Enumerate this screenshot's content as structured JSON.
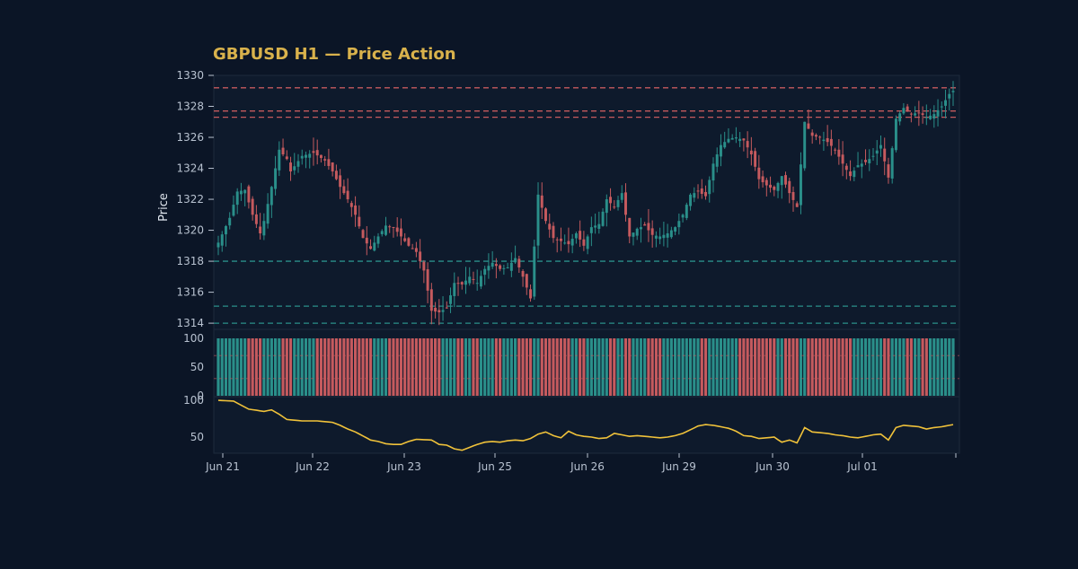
{
  "colors": {
    "background": "#0b1526",
    "panel": "#0e1a2c",
    "frame": "#1d2a3c",
    "text": "#b8c2d0",
    "title": "#d9b24c",
    "up": "#2a8f8a",
    "down": "#c55a5e",
    "resistance": "#c55a5e",
    "support": "#2a8f8a",
    "indicator": "#f0c23a"
  },
  "chart_data": {
    "type": "candlestick",
    "title": "GBPUSD H1 — Price Action",
    "ylabel": "Price",
    "price_ylim": [
      1313.6,
      1330.0
    ],
    "price_ticks": [
      "1314",
      "1316",
      "1318",
      "1320",
      "1322",
      "1324",
      "1326",
      "1328",
      "1330"
    ],
    "x_ticks": [
      "Jun 21",
      "Jun 22",
      "Jun 23",
      "Jun 25",
      "Jun 26",
      "Jun 29",
      "Jun 30",
      "Jul 01"
    ],
    "resistance_levels": [
      1329.2,
      1327.7,
      1327.3
    ],
    "support_levels": [
      1318.0,
      1315.1,
      1314.0
    ],
    "price_keypoints": [
      [
        0,
        1319.2
      ],
      [
        3,
        1320.8
      ],
      [
        5,
        1322.5
      ],
      [
        7,
        1322.6
      ],
      [
        9,
        1321.0
      ],
      [
        11,
        1319.8
      ],
      [
        12,
        1320.6
      ],
      [
        14,
        1322.8
      ],
      [
        16,
        1325.2
      ],
      [
        18,
        1324.6
      ],
      [
        19,
        1323.8
      ],
      [
        22,
        1324.8
      ],
      [
        25,
        1325.0
      ],
      [
        28,
        1324.5
      ],
      [
        30,
        1323.8
      ],
      [
        32,
        1322.8
      ],
      [
        34,
        1322.0
      ],
      [
        36,
        1321.0
      ],
      [
        38,
        1319.5
      ],
      [
        40,
        1318.8
      ],
      [
        42,
        1319.6
      ],
      [
        44,
        1320.3
      ],
      [
        46,
        1320.2
      ],
      [
        48,
        1319.6
      ],
      [
        50,
        1319.0
      ],
      [
        52,
        1318.6
      ],
      [
        54,
        1317.4
      ],
      [
        56,
        1314.8
      ],
      [
        58,
        1314.7
      ],
      [
        60,
        1315.0
      ],
      [
        62,
        1316.6
      ],
      [
        64,
        1316.5
      ],
      [
        66,
        1317.0
      ],
      [
        68,
        1316.6
      ],
      [
        70,
        1317.5
      ],
      [
        72,
        1317.9
      ],
      [
        74,
        1317.5
      ],
      [
        76,
        1317.6
      ],
      [
        78,
        1318.2
      ],
      [
        80,
        1317.0
      ],
      [
        82,
        1315.6
      ],
      [
        84,
        1322.3
      ],
      [
        86,
        1320.6
      ],
      [
        88,
        1319.5
      ],
      [
        90,
        1319.3
      ],
      [
        92,
        1319.1
      ],
      [
        94,
        1319.8
      ],
      [
        96,
        1319.0
      ],
      [
        98,
        1320.2
      ],
      [
        100,
        1320.4
      ],
      [
        102,
        1322.0
      ],
      [
        104,
        1321.5
      ],
      [
        106,
        1322.4
      ],
      [
        108,
        1319.6
      ],
      [
        110,
        1320.1
      ],
      [
        112,
        1320.3
      ],
      [
        114,
        1319.7
      ],
      [
        116,
        1319.6
      ],
      [
        118,
        1319.8
      ],
      [
        120,
        1320.2
      ],
      [
        122,
        1321.0
      ],
      [
        124,
        1322.3
      ],
      [
        126,
        1322.5
      ],
      [
        128,
        1322.2
      ],
      [
        130,
        1324.3
      ],
      [
        132,
        1325.5
      ],
      [
        134,
        1325.9
      ],
      [
        136,
        1326.0
      ],
      [
        138,
        1325.8
      ],
      [
        140,
        1324.9
      ],
      [
        142,
        1323.3
      ],
      [
        144,
        1322.9
      ],
      [
        146,
        1322.6
      ],
      [
        148,
        1323.5
      ],
      [
        150,
        1322.4
      ],
      [
        152,
        1321.5
      ],
      [
        154,
        1327.0
      ],
      [
        156,
        1326.1
      ],
      [
        158,
        1326.0
      ],
      [
        160,
        1325.7
      ],
      [
        162,
        1325.2
      ],
      [
        164,
        1324.3
      ],
      [
        166,
        1323.5
      ],
      [
        168,
        1324.2
      ],
      [
        170,
        1324.4
      ],
      [
        172,
        1324.8
      ],
      [
        174,
        1325.5
      ],
      [
        176,
        1323.4
      ],
      [
        178,
        1327.2
      ],
      [
        180,
        1327.9
      ],
      [
        182,
        1327.5
      ],
      [
        184,
        1327.6
      ],
      [
        186,
        1327.3
      ],
      [
        188,
        1327.5
      ],
      [
        190,
        1328.0
      ],
      [
        192,
        1328.8
      ],
      [
        193,
        1329.0
      ]
    ],
    "price_candle_count": 194,
    "volume_ylim": [
      0,
      100
    ],
    "volume_ticks": [
      "0",
      "50",
      "100"
    ],
    "oscillator_ylim": [
      28,
      105
    ],
    "oscillator_ticks": [
      "50",
      "100"
    ],
    "oscillator_keypoints": [
      [
        0,
        100
      ],
      [
        4,
        99
      ],
      [
        8,
        88
      ],
      [
        12,
        85
      ],
      [
        14,
        87
      ],
      [
        16,
        81
      ],
      [
        18,
        74
      ],
      [
        22,
        72
      ],
      [
        26,
        72
      ],
      [
        30,
        70
      ],
      [
        32,
        66
      ],
      [
        34,
        61
      ],
      [
        36,
        57
      ],
      [
        40,
        46
      ],
      [
        42,
        44
      ],
      [
        44,
        41
      ],
      [
        46,
        40
      ],
      [
        48,
        40
      ],
      [
        50,
        44
      ],
      [
        52,
        47
      ],
      [
        56,
        46
      ],
      [
        58,
        40
      ],
      [
        60,
        39
      ],
      [
        62,
        34
      ],
      [
        64,
        32
      ],
      [
        66,
        36
      ],
      [
        68,
        40
      ],
      [
        70,
        43
      ],
      [
        72,
        44
      ],
      [
        74,
        43
      ],
      [
        76,
        45
      ],
      [
        78,
        46
      ],
      [
        80,
        45
      ],
      [
        82,
        48
      ],
      [
        84,
        54
      ],
      [
        86,
        57
      ],
      [
        88,
        52
      ],
      [
        90,
        49
      ],
      [
        92,
        58
      ],
      [
        94,
        53
      ],
      [
        96,
        51
      ],
      [
        98,
        50
      ],
      [
        100,
        48
      ],
      [
        102,
        49
      ],
      [
        104,
        55
      ],
      [
        106,
        53
      ],
      [
        108,
        51
      ],
      [
        110,
        52
      ],
      [
        112,
        51
      ],
      [
        114,
        50
      ],
      [
        116,
        49
      ],
      [
        118,
        50
      ],
      [
        120,
        52
      ],
      [
        122,
        55
      ],
      [
        124,
        60
      ],
      [
        126,
        65
      ],
      [
        128,
        67
      ],
      [
        130,
        66
      ],
      [
        132,
        64
      ],
      [
        134,
        62
      ],
      [
        136,
        58
      ],
      [
        138,
        52
      ],
      [
        140,
        51
      ],
      [
        142,
        48
      ],
      [
        144,
        49
      ],
      [
        146,
        50
      ],
      [
        148,
        43
      ],
      [
        150,
        46
      ],
      [
        152,
        42
      ],
      [
        154,
        63
      ],
      [
        156,
        57
      ],
      [
        158,
        56
      ],
      [
        160,
        55
      ],
      [
        162,
        53
      ],
      [
        164,
        52
      ],
      [
        166,
        50
      ],
      [
        168,
        49
      ],
      [
        170,
        51
      ],
      [
        172,
        53
      ],
      [
        174,
        54
      ],
      [
        176,
        46
      ],
      [
        178,
        63
      ],
      [
        180,
        66
      ],
      [
        182,
        65
      ],
      [
        184,
        64
      ],
      [
        186,
        61
      ],
      [
        188,
        63
      ],
      [
        190,
        64
      ],
      [
        192,
        66
      ],
      [
        193,
        67
      ]
    ]
  }
}
